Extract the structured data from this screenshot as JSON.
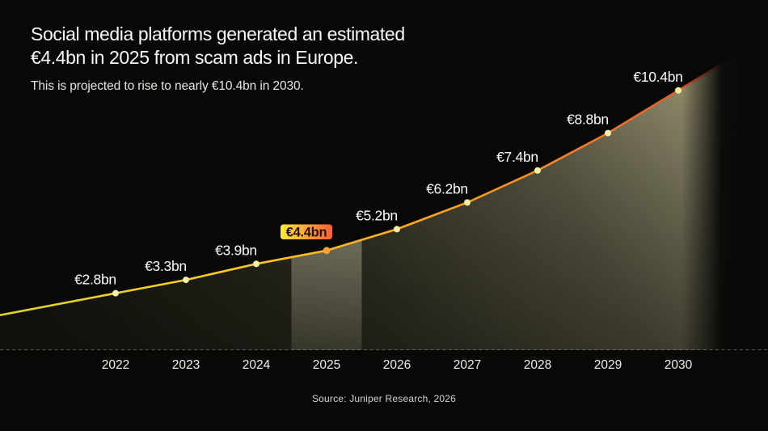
{
  "header": {
    "title_line1": "Social media platforms generated an estimated",
    "title_line2": "€4.4bn in 2025 from scam ads in Europe.",
    "subtitle": "This is projected to rise to nearly €10.4bn in 2030."
  },
  "footer": {
    "source": "Source: Juniper Research, 2026"
  },
  "chart_data": {
    "type": "area",
    "title": "Social media platforms generated an estimated €4.4bn in 2025 from scam ads in Europe.",
    "subtitle": "This is projected to rise to nearly €10.4bn in 2030.",
    "source": "Source: Juniper Research, 2026",
    "unit": "€bn",
    "categories": [
      "2022",
      "2023",
      "2024",
      "2025",
      "2026",
      "2027",
      "2028",
      "2029",
      "2030"
    ],
    "values": [
      2.8,
      3.3,
      3.9,
      4.4,
      5.2,
      6.2,
      7.4,
      8.8,
      10.4
    ],
    "point_labels": [
      "€2.8bn",
      "€3.3bn",
      "€3.9bn",
      "€4.4bn",
      "€5.2bn",
      "€6.2bn",
      "€7.4bn",
      "€8.8bn",
      "€10.4bn"
    ],
    "highlight": {
      "category": "2025",
      "label": "€4.4bn"
    },
    "axis": {
      "y_axis_hidden": true,
      "baseline_dashed": true,
      "legend": "none",
      "ylim": [
        0,
        11
      ]
    },
    "colors": {
      "background": "#080807",
      "line_gradient": [
        "#ddd22b",
        "#f6d028",
        "#ffb621",
        "#fb8d22",
        "#e2512a"
      ],
      "dot": "#f8f1a2",
      "highlight_dot": "#ffa132",
      "badge_gradient": [
        "#ffe93a",
        "#ff5f35"
      ],
      "badge_text": "#201300",
      "fill_dark": "#17160e",
      "fill_mid": "#343326",
      "fill_mid2": "#5f5c48",
      "fill_light": "#a29e79",
      "band_overlay": "#d8d4b4",
      "axis_line": "#9a9890",
      "value_label": "#fafaf8",
      "tick_label": "#f0eeea",
      "source_text": "#d6d4d0"
    }
  }
}
